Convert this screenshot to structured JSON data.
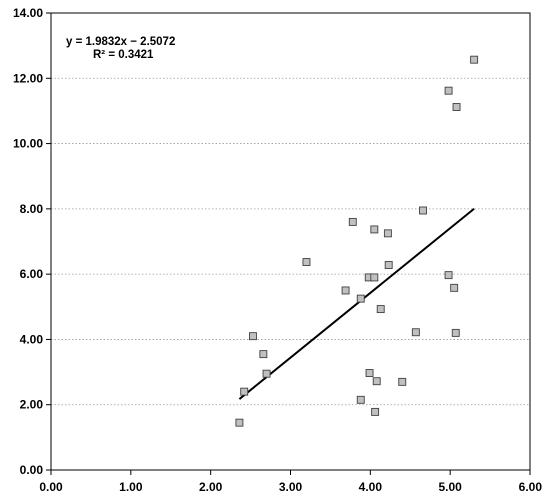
{
  "chart_data": {
    "type": "scatter",
    "title": "",
    "xlabel": "",
    "ylabel": "",
    "xlim": [
      0,
      6
    ],
    "ylim": [
      0,
      14
    ],
    "x_ticks": [
      "0.00",
      "1.00",
      "2.00",
      "3.00",
      "4.00",
      "5.00",
      "6.00"
    ],
    "y_ticks": [
      "0.00",
      "2.00",
      "4.00",
      "6.00",
      "8.00",
      "10.00",
      "12.00",
      "14.00"
    ],
    "grid": "horizontal dotted",
    "legend": "none",
    "series": [
      {
        "points": [
          [
            2.36,
            1.45
          ],
          [
            2.42,
            2.4
          ],
          [
            2.53,
            4.1
          ],
          [
            2.66,
            3.55
          ],
          [
            2.7,
            2.95
          ],
          [
            3.2,
            6.37
          ],
          [
            3.69,
            5.5
          ],
          [
            3.78,
            7.6
          ],
          [
            3.88,
            5.25
          ],
          [
            3.88,
            2.15
          ],
          [
            3.98,
            5.9
          ],
          [
            3.99,
            2.97
          ],
          [
            4.05,
            7.37
          ],
          [
            4.05,
            5.9
          ],
          [
            4.06,
            1.78
          ],
          [
            4.08,
            2.72
          ],
          [
            4.13,
            4.93
          ],
          [
            4.22,
            7.25
          ],
          [
            4.23,
            6.28
          ],
          [
            4.4,
            2.7
          ],
          [
            4.57,
            4.22
          ],
          [
            4.66,
            7.95
          ],
          [
            4.98,
            5.97
          ],
          [
            4.98,
            11.62
          ],
          [
            5.05,
            5.58
          ],
          [
            5.07,
            4.2
          ],
          [
            5.08,
            11.12
          ],
          [
            5.3,
            12.57
          ]
        ],
        "marker_color": "#c0c0c0",
        "marker_edge": "#404040"
      }
    ],
    "trendline": {
      "slope": 1.9832,
      "intercept": -2.5072,
      "x_range": [
        2.36,
        5.3
      ],
      "color": "#000000"
    },
    "annotations": {
      "equation": "y = 1.9832x − 2.5072",
      "r_squared": "R² = 0.3421"
    }
  }
}
